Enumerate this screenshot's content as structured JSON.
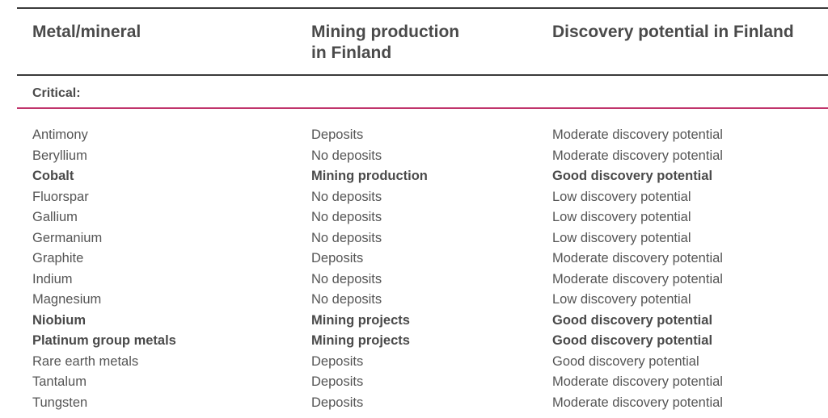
{
  "table": {
    "headers": {
      "metal": "Metal/mineral",
      "production": "Mining production\nin Finland",
      "potential": "Discovery potential in Finland"
    },
    "section_label": "Critical:",
    "rows": [
      {
        "metal": "Antimony",
        "production": "Deposits",
        "potential": "Moderate discovery potential",
        "bold": false
      },
      {
        "metal": "Beryllium",
        "production": "No deposits",
        "potential": "Moderate discovery potential",
        "bold": false
      },
      {
        "metal": "Cobalt",
        "production": "Mining production",
        "potential": "Good discovery potential",
        "bold": true
      },
      {
        "metal": "Fluorspar",
        "production": "No deposits",
        "potential": "Low discovery potential",
        "bold": false
      },
      {
        "metal": "Gallium",
        "production": "No deposits",
        "potential": "Low discovery potential",
        "bold": false
      },
      {
        "metal": "Germanium",
        "production": "No deposits",
        "potential": "Low discovery potential",
        "bold": false
      },
      {
        "metal": "Graphite",
        "production": "Deposits",
        "potential": "Moderate discovery potential",
        "bold": false
      },
      {
        "metal": "Indium",
        "production": "No deposits",
        "potential": "Moderate discovery potential",
        "bold": false
      },
      {
        "metal": "Magnesium",
        "production": "No deposits",
        "potential": "Low discovery potential",
        "bold": false
      },
      {
        "metal": "Niobium",
        "production": "Mining projects",
        "potential": "Good discovery potential",
        "bold": true
      },
      {
        "metal": "Platinum group metals",
        "production": "Mining projects",
        "potential": "Good discovery potential",
        "bold": true
      },
      {
        "metal": "Rare earth metals",
        "production": "Deposits",
        "potential": "Good discovery potential",
        "bold": false
      },
      {
        "metal": "Tantalum",
        "production": "Deposits",
        "potential": "Moderate discovery potential",
        "bold": false
      },
      {
        "metal": "Tungsten",
        "production": "Deposits",
        "potential": "Moderate discovery potential",
        "bold": false
      }
    ]
  },
  "colors": {
    "rule": "#3a3a3a",
    "accent_rule": "#c0346b",
    "text": "#555555"
  }
}
